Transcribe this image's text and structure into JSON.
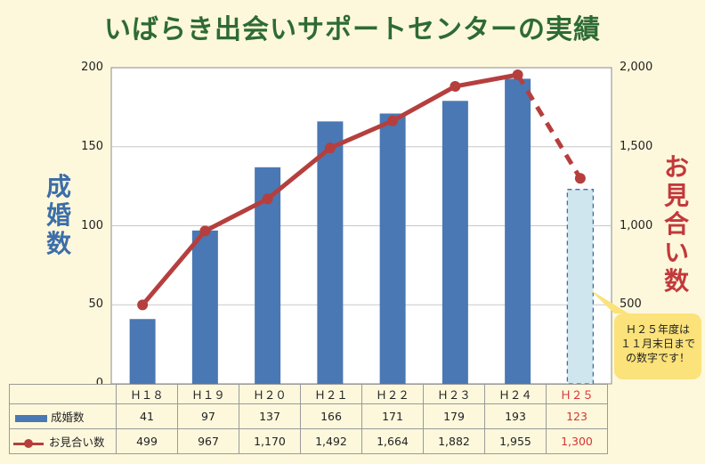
{
  "title": "いばらき出会いサポートセンターの実績",
  "left_label": "成婚数",
  "right_label": "お見合い数",
  "callout": "Ｈ２５年度は\n１１月末日まで\nの数字です！",
  "colors": {
    "bar": "#4a78b4",
    "line": "#b53f3e",
    "highlight": "#d63333",
    "projected_bar": "#cfe6ee"
  },
  "chart_data": {
    "type": "bar+line",
    "categories": [
      "Ｈ１８",
      "Ｈ１９",
      "Ｈ２０",
      "Ｈ２１",
      "Ｈ２２",
      "Ｈ２３",
      "Ｈ２４",
      "Ｈ２５"
    ],
    "series": [
      {
        "name": "成婚数",
        "type": "bar",
        "axis": "left",
        "values": [
          41,
          97,
          137,
          166,
          171,
          179,
          193,
          123
        ]
      },
      {
        "name": "お見合い数",
        "type": "line",
        "axis": "right",
        "values": [
          499,
          967,
          1170,
          1492,
          1664,
          1882,
          1955,
          1300
        ]
      }
    ],
    "value_labels": {
      "bars": [
        "41",
        "97",
        "137",
        "166",
        "171",
        "179",
        "193",
        "123"
      ],
      "line": [
        "499",
        "967",
        "1,170",
        "1,492",
        "1,664",
        "1,882",
        "1,955",
        "1,300"
      ]
    },
    "y_left": {
      "lim": [
        0,
        200
      ],
      "ticks": [
        "0",
        "50",
        "100",
        "150",
        "200"
      ]
    },
    "y_right": {
      "lim": [
        0,
        2000
      ],
      "ticks": [
        "500",
        "1,000",
        "1,500",
        "2,000"
      ]
    },
    "grid": true,
    "partial_period_index": 7
  }
}
